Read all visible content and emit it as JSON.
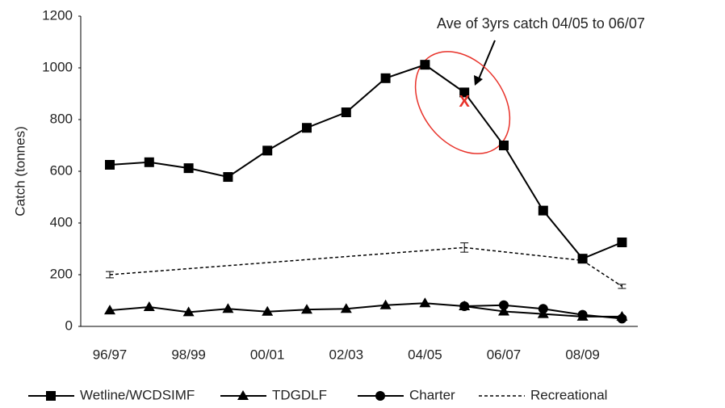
{
  "chart_data": {
    "type": "line",
    "ylabel": "Catch (tonnes)",
    "annotation": "Ave of 3yrs catch 04/05 to 06/07",
    "average_marker": {
      "text": "X",
      "category_index": 9,
      "value": 866
    },
    "categories": [
      "96/97",
      null,
      "98/99",
      null,
      "00/01",
      null,
      "02/03",
      null,
      "04/05",
      null,
      "06/07",
      null,
      "08/09",
      null
    ],
    "ylim": [
      0,
      1200
    ],
    "yticks": [
      0,
      200,
      400,
      600,
      800,
      1000,
      1200
    ],
    "series": [
      {
        "name": "Wetline/WCDSIMF",
        "marker": "square",
        "color": "#000000",
        "values": [
          625,
          635,
          612,
          578,
          680,
          768,
          828,
          960,
          1012,
          905,
          700,
          448,
          262,
          325
        ]
      },
      {
        "name": "TDGDLF",
        "marker": "triangle",
        "color": "#000000",
        "values": [
          62,
          75,
          55,
          68,
          57,
          65,
          68,
          82,
          90,
          78,
          58,
          48,
          38,
          38
        ]
      },
      {
        "name": "Charter",
        "marker": "circle",
        "color": "#000000",
        "values": [
          null,
          null,
          null,
          null,
          null,
          null,
          null,
          null,
          null,
          78,
          82,
          68,
          45,
          30
        ]
      },
      {
        "name": "Recreational",
        "marker": "none",
        "dashed": true,
        "connect_gaps": true,
        "color": "#000000",
        "values": [
          200,
          null,
          null,
          null,
          null,
          null,
          null,
          null,
          null,
          305,
          null,
          null,
          255,
          155
        ],
        "errors": [
          12,
          null,
          null,
          null,
          null,
          null,
          null,
          null,
          null,
          18,
          null,
          null,
          10,
          8
        ]
      }
    ]
  }
}
